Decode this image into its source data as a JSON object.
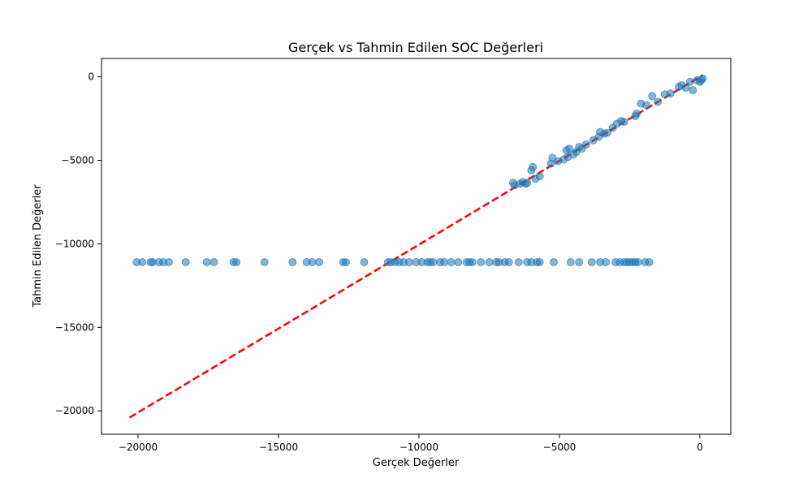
{
  "chart_data": {
    "type": "scatter",
    "title": "Gerçek vs Tahmin Edilen SOC Değerleri",
    "xlabel": "Gerçek Değerler",
    "ylabel": "Tahmin Edilen Değerler",
    "xlim": [
      -21300,
      1100
    ],
    "ylim": [
      -21400,
      1100
    ],
    "xticks": [
      -20000,
      -15000,
      -10000,
      -5000,
      0
    ],
    "yticks": [
      0,
      -5000,
      -10000,
      -15000,
      -20000
    ],
    "xtick_labels": [
      "−20000",
      "−15000",
      "−10000",
      "−5000",
      "0"
    ],
    "ytick_labels": [
      "0",
      "−5000",
      "−10000",
      "−15000",
      "−20000"
    ],
    "grid": false,
    "point_color": "#1f77b4",
    "line_color": "#ff0000",
    "ideal_line": {
      "x": [
        -20300,
        100
      ],
      "y": [
        -20400,
        100
      ]
    },
    "series": [
      {
        "x": [
          -20050,
          -19850,
          -19550,
          -19480,
          -19250,
          -19100,
          -18900,
          -18300,
          -17550,
          -17300,
          -16600,
          -16500,
          -15500,
          -14500,
          -14000,
          -13800,
          -13550,
          -12700,
          -12600,
          -11950,
          -11100,
          -11000,
          -10850,
          -10700,
          -10550,
          -10350,
          -10100,
          -9900,
          -9700,
          -9600,
          -9500,
          -9250,
          -9100,
          -8850,
          -8600,
          -8300,
          -8200,
          -8100,
          -7800,
          -7500,
          -7250,
          -7150,
          -6950,
          -6800,
          -6450,
          -6150,
          -6000,
          -5800,
          -5700,
          -5200,
          -4600,
          -4300,
          -3850,
          -3550,
          -3350,
          -3000,
          -2850,
          -2700,
          -2600,
          -2500,
          -2400,
          -2300,
          -2200,
          -1950,
          -1800
        ],
        "y": [
          -11100,
          -11100,
          -11100,
          -11100,
          -11100,
          -11100,
          -11100,
          -11100,
          -11100,
          -11100,
          -11100,
          -11100,
          -11100,
          -11100,
          -11100,
          -11100,
          -11100,
          -11100,
          -11100,
          -11100,
          -11100,
          -11100,
          -11100,
          -11100,
          -11100,
          -11100,
          -11100,
          -11100,
          -11100,
          -11100,
          -11100,
          -11100,
          -11100,
          -11100,
          -11100,
          -11100,
          -11100,
          -11100,
          -11100,
          -11100,
          -11100,
          -11100,
          -11100,
          -11100,
          -11100,
          -11100,
          -11100,
          -11100,
          -11100,
          -11100,
          -11100,
          -11100,
          -11100,
          -11100,
          -11100,
          -11100,
          -11100,
          -11100,
          -11100,
          -11100,
          -11100,
          -11100,
          -11100,
          -11100,
          -11100
        ]
      },
      {
        "x": [
          -6650,
          -6600,
          -6400,
          -6300,
          -6200,
          -6150,
          -6000,
          -5950,
          -5850,
          -5700,
          -5300,
          -5250,
          -5050,
          -4850,
          -4750,
          -4700,
          -4650,
          -4500,
          -4400,
          -4300,
          -4200,
          -4050,
          -3800,
          -3600,
          -3550,
          -3400,
          -3300,
          -3100,
          -2950,
          -2800,
          -2700,
          -2300,
          -2250,
          -2100,
          -1900,
          -1700,
          -1500,
          -1250,
          -1050,
          -750,
          -650,
          -500,
          -350,
          -250,
          -100,
          0,
          50,
          100
        ],
        "y": [
          -6350,
          -6500,
          -6400,
          -6300,
          -6400,
          -6350,
          -5600,
          -5400,
          -6100,
          -5950,
          -5200,
          -4850,
          -5050,
          -4950,
          -4400,
          -4800,
          -4300,
          -4650,
          -4500,
          -4200,
          -4300,
          -4050,
          -3800,
          -3600,
          -3300,
          -3400,
          -3350,
          -3050,
          -2800,
          -2650,
          -2700,
          -2350,
          -2200,
          -1600,
          -1700,
          -1150,
          -1500,
          -1050,
          -1000,
          -600,
          -500,
          -650,
          -300,
          -800,
          -200,
          -300,
          -200,
          -100
        ]
      }
    ]
  }
}
